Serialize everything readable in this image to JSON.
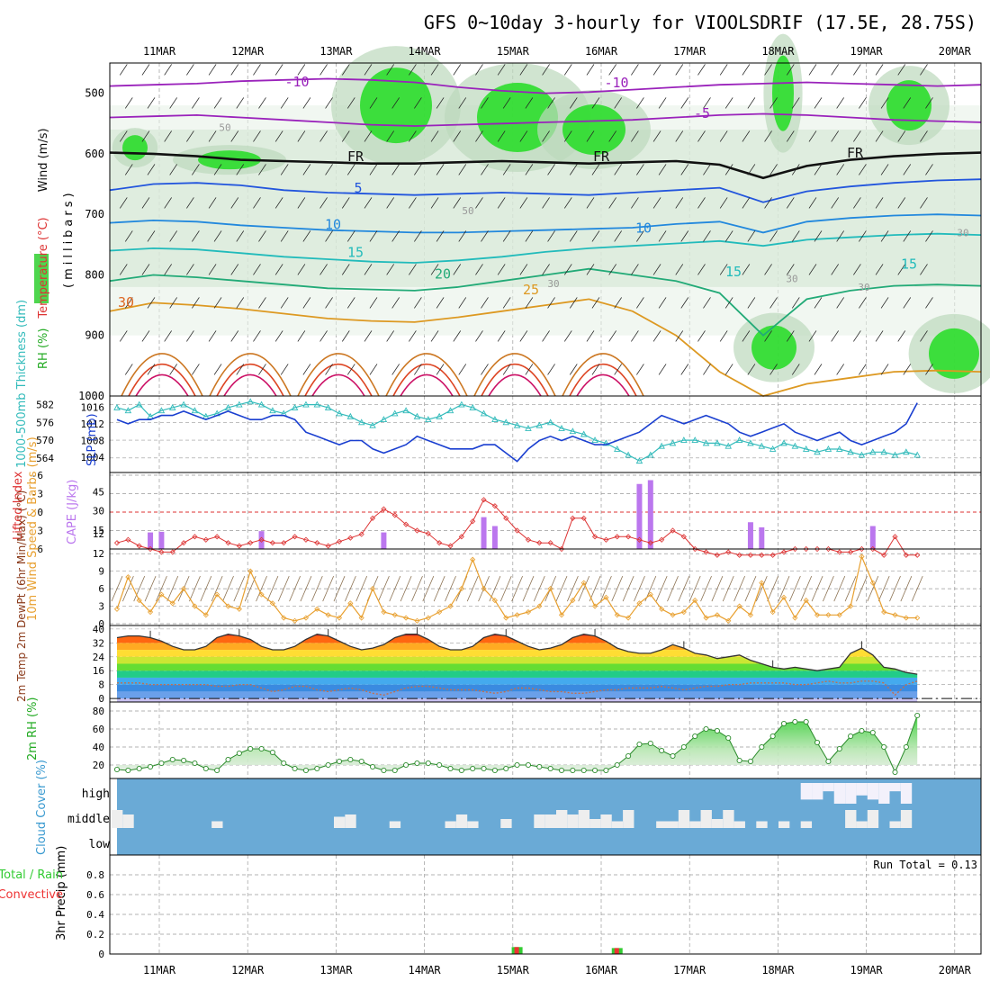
{
  "title": "GFS 0~10day 3-hourly for VIOOLSDRIF (17.5E, 28.75S)",
  "date_labels": [
    "11MAR",
    "12MAR",
    "13MAR",
    "14MAR",
    "15MAR",
    "16MAR",
    "17MAR",
    "18MAR",
    "19MAR",
    "20MAR"
  ],
  "colors": {
    "grid": "#9a9a9a",
    "frame": "#000000",
    "slp": "#1a3fd0",
    "thickness": "#33bbbb",
    "lifted": "#dd3333",
    "cape": "#bb77ee",
    "wind": "#e8a030",
    "cloud": "#6aaad6",
    "cloud_clear": "#f3f1fb",
    "rh_fill": "#33cc33",
    "rain": "#33cc33",
    "conv": "#ee3333"
  },
  "chart_data": [
    {
      "id": "upper-air",
      "type": "contour",
      "ylabel_parts": [
        "RH (%)",
        "Temperature (°C)",
        "Wind (m/s)"
      ],
      "yaxis_label": "(millibars)",
      "yticks": [
        500,
        600,
        700,
        800,
        900,
        1000
      ],
      "ylim": [
        450,
        1000
      ],
      "contour_labels": [
        "-10",
        "-10",
        "-5",
        "FR",
        "FR",
        "FR",
        "5",
        "10",
        "10",
        "15",
        "15",
        "15",
        "20",
        "25",
        "30",
        "30",
        "30",
        "50",
        "50",
        "30",
        "30"
      ],
      "isotherms": [
        {
          "label": "-10",
          "color": "#9a22bb",
          "p": [
            488,
            486,
            484,
            480,
            478,
            476,
            478,
            482,
            490,
            496,
            500,
            498,
            494,
            490,
            486,
            484,
            482,
            484,
            486,
            488,
            486
          ]
        },
        {
          "label": "-5",
          "color": "#9a22bb",
          "p": [
            540,
            538,
            536,
            540,
            544,
            548,
            552,
            554,
            552,
            550,
            548,
            546,
            544,
            540,
            536,
            534,
            536,
            540,
            544,
            546,
            548
          ]
        },
        {
          "label": "FR",
          "color": "#111111",
          "p": [
            598,
            600,
            604,
            610,
            612,
            614,
            616,
            616,
            614,
            612,
            614,
            616,
            614,
            612,
            618,
            640,
            620,
            610,
            604,
            600,
            598
          ]
        },
        {
          "label": "5",
          "color": "#2255dd",
          "p": [
            660,
            650,
            648,
            652,
            660,
            664,
            666,
            668,
            666,
            664,
            666,
            668,
            664,
            660,
            656,
            680,
            662,
            654,
            648,
            644,
            642
          ]
        },
        {
          "label": "10",
          "color": "#2288dd",
          "p": [
            714,
            710,
            712,
            718,
            722,
            726,
            728,
            730,
            730,
            728,
            726,
            724,
            722,
            716,
            712,
            730,
            712,
            706,
            702,
            700,
            702
          ]
        },
        {
          "label": "15",
          "color": "#22bbbb",
          "p": [
            760,
            756,
            758,
            764,
            770,
            774,
            778,
            780,
            776,
            770,
            762,
            756,
            752,
            748,
            744,
            752,
            742,
            738,
            734,
            732,
            734
          ]
        },
        {
          "label": "20",
          "color": "#22aa77",
          "p": [
            810,
            800,
            804,
            810,
            816,
            822,
            824,
            826,
            820,
            810,
            800,
            790,
            800,
            810,
            830,
            900,
            840,
            826,
            818,
            816,
            818
          ]
        },
        {
          "label": "25",
          "color": "#dd9922",
          "p": [
            860,
            846,
            850,
            856,
            864,
            872,
            876,
            878,
            870,
            860,
            850,
            840,
            860,
            900,
            960,
            1000,
            980,
            970,
            960,
            958,
            960
          ]
        }
      ]
    },
    {
      "id": "slp-thickness",
      "type": "line",
      "ylabel_left": "1000-500mb Thickness (dm)",
      "ylabel_right": "SLP (mb)",
      "thickness_ticks": [
        564,
        570,
        576,
        582
      ],
      "slp_ticks": [
        1004,
        1008,
        1012,
        1016
      ],
      "series": [
        {
          "name": "thickness",
          "values": [
            581,
            580,
            582,
            578,
            580,
            581,
            582,
            580,
            578,
            579,
            581,
            582,
            583,
            582,
            580,
            579,
            581,
            582,
            582,
            581,
            579,
            578,
            576,
            575,
            577,
            579,
            580,
            578,
            577,
            578,
            580,
            582,
            581,
            579,
            577,
            576,
            575,
            574,
            575,
            576,
            574,
            573,
            572,
            570,
            569,
            567,
            565,
            563,
            565,
            568,
            569,
            570,
            570,
            569,
            569,
            568,
            570,
            569,
            568,
            567,
            569,
            568,
            567,
            566,
            567,
            567,
            566,
            565,
            566,
            566,
            565,
            566,
            565
          ]
        },
        {
          "name": "slp",
          "values": [
            1013,
            1012,
            1013,
            1013,
            1014,
            1014,
            1015,
            1014,
            1013,
            1014,
            1015,
            1014,
            1013,
            1013,
            1014,
            1014,
            1013,
            1010,
            1009,
            1008,
            1007,
            1008,
            1008,
            1006,
            1005,
            1006,
            1007,
            1009,
            1008,
            1007,
            1006,
            1006,
            1006,
            1007,
            1007,
            1005,
            1003,
            1006,
            1008,
            1009,
            1008,
            1009,
            1008,
            1007,
            1007,
            1008,
            1009,
            1010,
            1012,
            1014,
            1013,
            1012,
            1013,
            1014,
            1013,
            1012,
            1010,
            1009,
            1010,
            1011,
            1012,
            1010,
            1009,
            1008,
            1009,
            1010,
            1008,
            1007,
            1008,
            1009,
            1010,
            1012,
            1017
          ]
        }
      ]
    },
    {
      "id": "instability",
      "type": "bar+line",
      "ylabel_left": "Lifted Index",
      "ylabel_right": "CAPE (J/kg)",
      "li_ticks": [
        "-6",
        "-3",
        "0",
        "3",
        "6"
      ],
      "cape_ticks": [
        12,
        15,
        30,
        45
      ],
      "lifted_index": [
        5,
        4.5,
        5.5,
        6,
        6.5,
        6.5,
        5,
        4,
        4.5,
        4,
        5,
        5.5,
        5,
        4.5,
        5,
        5,
        4,
        4.5,
        5,
        5.5,
        4.8,
        4.2,
        3.6,
        1,
        -0.5,
        0.5,
        2,
        3,
        3.5,
        5,
        5.5,
        4,
        1.5,
        -2,
        -1,
        1,
        3,
        4.5,
        5,
        5,
        6,
        1,
        1,
        4,
        4.5,
        4,
        4,
        4.5,
        5,
        4.5,
        3,
        4,
        6,
        6.5,
        7,
        6.5,
        7,
        7,
        7,
        7,
        6.5,
        6,
        6,
        6,
        6,
        6.5,
        6.5,
        6,
        6,
        7,
        4,
        7,
        7
      ],
      "cape": [
        {
          "i": 3,
          "v": 13
        },
        {
          "i": 4,
          "v": 13.5
        },
        {
          "i": 13,
          "v": 14
        },
        {
          "i": 24,
          "v": 13
        },
        {
          "i": 33,
          "v": 25
        },
        {
          "i": 34,
          "v": 18
        },
        {
          "i": 47,
          "v": 51
        },
        {
          "i": 48,
          "v": 54
        },
        {
          "i": 57,
          "v": 21
        },
        {
          "i": 58,
          "v": 17
        },
        {
          "i": 68,
          "v": 18
        }
      ]
    },
    {
      "id": "surface-wind",
      "type": "line",
      "ylabel": "10m Wind Speed & Barbs (m/s)",
      "yticks": [
        0,
        3,
        6,
        9,
        12
      ],
      "values": [
        2.5,
        8,
        4,
        2,
        5,
        3.5,
        6,
        3,
        1.5,
        5,
        3,
        2.5,
        9,
        5,
        3.5,
        1,
        0.5,
        1,
        2.5,
        1.5,
        1,
        3.5,
        1,
        6,
        2,
        1.5,
        1,
        0.5,
        1,
        2,
        3,
        6,
        11,
        6,
        4,
        1,
        1.5,
        2,
        3,
        6,
        1.5,
        4,
        7,
        3,
        4.5,
        1.5,
        1,
        3.5,
        5,
        2.5,
        1.5,
        2,
        4,
        1,
        1.5,
        0.5,
        3,
        1.5,
        7,
        2,
        4.5,
        1,
        4,
        1.5,
        1.5,
        1.5,
        3,
        11.5,
        7,
        2,
        1.5,
        1,
        1
      ]
    },
    {
      "id": "surface-temp",
      "type": "area",
      "ylabel": "2m Temp 2m DewPt (6hr Min/Max) (°C)",
      "yticks": [
        0,
        8,
        16,
        24,
        32,
        40
      ],
      "temp": [
        35,
        36,
        36,
        35,
        33,
        30,
        28,
        28,
        30,
        35,
        37,
        36,
        34,
        30,
        28,
        28,
        30,
        34,
        37,
        36,
        33,
        30,
        28,
        29,
        31,
        35,
        37,
        37,
        34,
        30,
        28,
        28,
        30,
        35,
        37,
        36,
        33,
        30,
        28,
        29,
        31,
        35,
        37,
        36,
        33,
        29,
        27,
        26,
        26,
        28,
        31,
        29,
        26,
        25,
        23,
        24,
        25,
        22,
        20,
        18,
        17,
        18,
        17,
        16,
        17,
        18,
        26,
        29,
        25,
        18,
        17,
        15,
        14
      ],
      "dewpoint": [
        9,
        9,
        9,
        8,
        8,
        8,
        8,
        8,
        8,
        7,
        7,
        8,
        8,
        6,
        4,
        5,
        7,
        7,
        5,
        4,
        5,
        6,
        5,
        3,
        2,
        4,
        6,
        7,
        7,
        6,
        5,
        5,
        5,
        4,
        3,
        4,
        6,
        6,
        5,
        4,
        4,
        3,
        3,
        4,
        5,
        5,
        6,
        6,
        6,
        7,
        6,
        5,
        6,
        7,
        7,
        8,
        8,
        9,
        9,
        9,
        9,
        8,
        8,
        9,
        10,
        9,
        9,
        10,
        10,
        9,
        2,
        8,
        10
      ]
    },
    {
      "id": "surface-rh",
      "type": "area",
      "ylabel": "2m RH (%)",
      "yticks": [
        20,
        40,
        60,
        80
      ],
      "values": [
        15,
        14,
        16,
        18,
        22,
        26,
        25,
        22,
        16,
        14,
        26,
        33,
        38,
        38,
        34,
        22,
        16,
        14,
        16,
        20,
        24,
        26,
        24,
        18,
        14,
        14,
        20,
        22,
        22,
        20,
        16,
        14,
        16,
        16,
        14,
        16,
        20,
        20,
        18,
        16,
        14,
        14,
        14,
        14,
        14,
        20,
        30,
        43,
        44,
        36,
        30,
        40,
        52,
        60,
        58,
        50,
        25,
        24,
        40,
        52,
        66,
        68,
        68,
        45,
        24,
        38,
        52,
        58,
        56,
        40,
        12,
        40,
        75
      ]
    },
    {
      "id": "cloud-cover",
      "type": "heatmap",
      "ylabel": "Cloud Cover (%)",
      "levels": [
        "high",
        "middle",
        "low"
      ],
      "high": [
        0,
        0,
        0,
        0,
        0,
        0,
        0,
        0,
        0,
        0,
        0,
        0,
        0,
        0,
        0,
        0,
        0,
        0,
        0,
        0,
        0,
        0,
        0,
        0,
        0,
        0,
        0,
        0,
        0,
        0,
        0,
        0,
        0,
        0,
        0,
        0,
        0,
        0,
        0,
        0,
        0,
        0,
        0,
        0,
        0,
        0,
        0,
        0,
        0,
        0,
        0,
        0,
        0,
        0,
        0,
        0,
        0,
        0,
        0,
        0,
        0,
        0,
        80,
        80,
        40,
        100,
        100,
        60,
        80,
        100,
        40,
        100,
        0
      ],
      "middle": [
        80,
        60,
        0,
        0,
        0,
        0,
        0,
        0,
        0,
        30,
        0,
        0,
        0,
        0,
        0,
        0,
        0,
        0,
        0,
        0,
        50,
        60,
        0,
        0,
        0,
        30,
        0,
        0,
        0,
        0,
        30,
        60,
        30,
        0,
        0,
        40,
        0,
        0,
        60,
        60,
        80,
        60,
        80,
        40,
        60,
        30,
        80,
        0,
        0,
        30,
        30,
        80,
        30,
        80,
        40,
        80,
        30,
        0,
        30,
        0,
        30,
        0,
        30,
        0,
        0,
        0,
        80,
        30,
        80,
        0,
        30,
        80,
        0
      ]
    },
    {
      "id": "precip",
      "type": "bar",
      "ylabel_left": "Total / Rain Convective",
      "ylabel": "3hr Precip (mm)",
      "yticks": [
        "0",
        "0.2",
        "0.4",
        "0.6",
        "0.8"
      ],
      "ylim": [
        0,
        1
      ],
      "run_total": "Run Total = 0.13",
      "bars": [
        {
          "i": 36,
          "rain": 0.07,
          "conv": 0.07
        },
        {
          "i": 45,
          "rain": 0.06,
          "conv": 0.06
        }
      ]
    }
  ]
}
